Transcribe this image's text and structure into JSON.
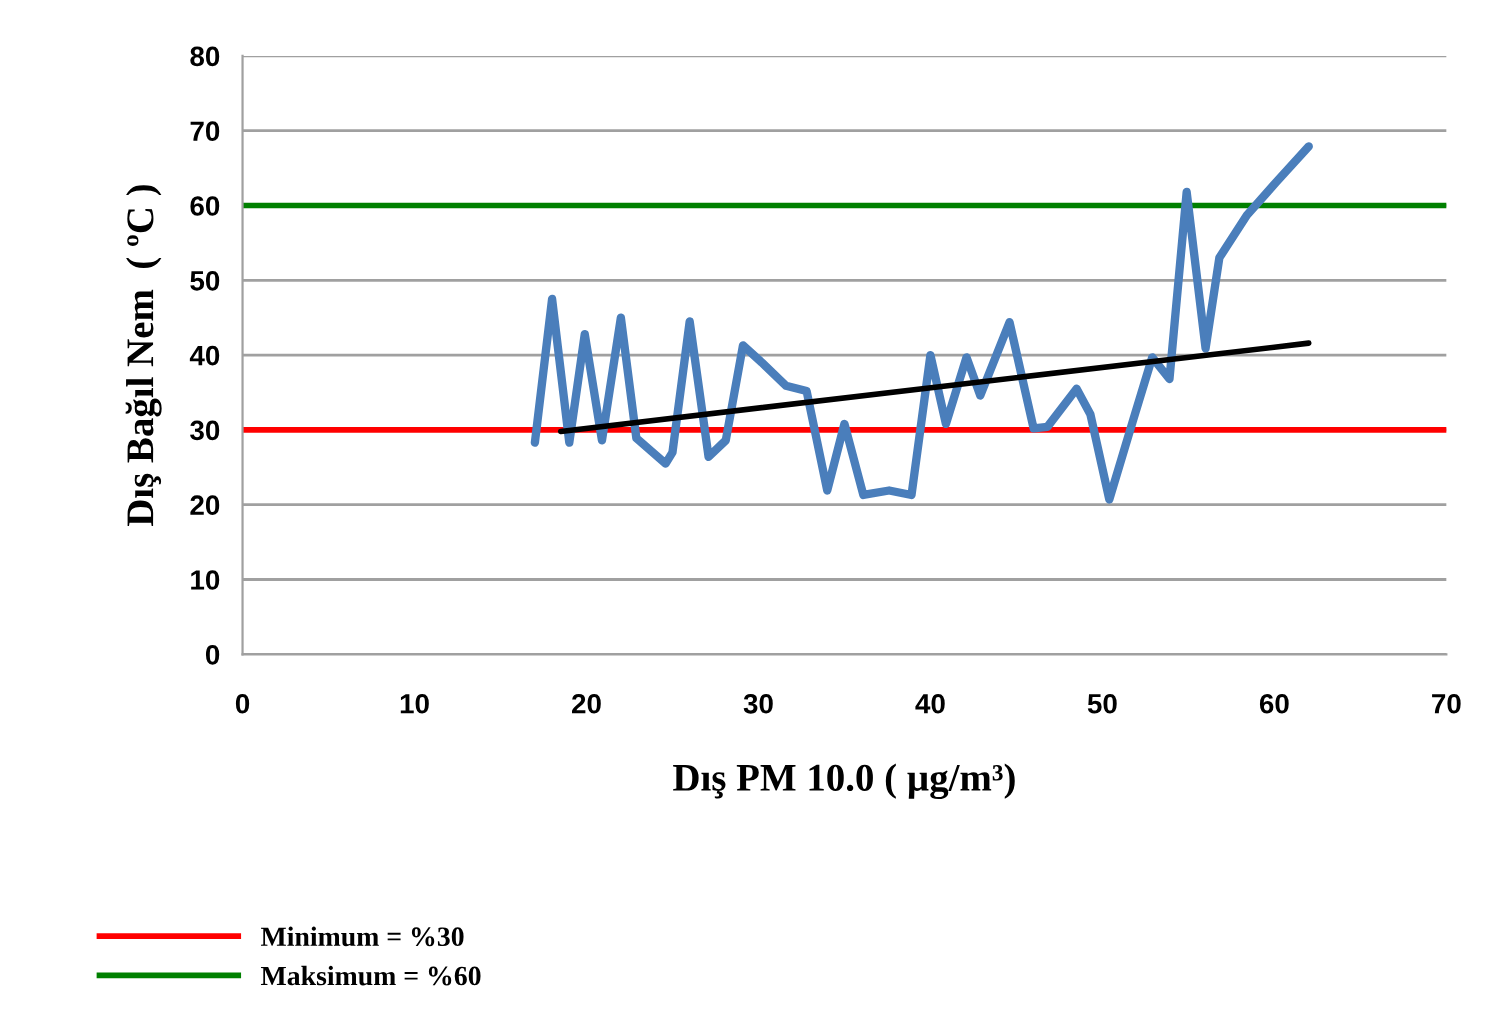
{
  "chart_data": {
    "type": "line",
    "xlabel": "Dış PM 10.0 ( µg/m³)",
    "ylabel": "Dış Bağıl Nem  ( ºC )",
    "xlim": [
      0,
      70
    ],
    "xticks": [
      0,
      10,
      20,
      30,
      40,
      50,
      60,
      70
    ],
    "ylim": [
      0,
      80
    ],
    "yticks": [
      0,
      10,
      20,
      30,
      40,
      50,
      60,
      70,
      80
    ],
    "grid": "y",
    "legend": "bottom left",
    "marker": "none",
    "line_style": "solid",
    "series": [
      {
        "color": "#4a7ebb",
        "x": [
          17,
          18,
          19,
          19.9,
          20.9,
          22,
          22.9,
          24.6,
          25,
          26,
          27.1,
          28.1,
          29.1,
          30.2,
          31.6,
          32.8,
          34,
          35,
          36.1,
          37.6,
          38.9,
          40,
          40.9,
          42.1,
          42.9,
          44.6,
          46,
          46.8,
          48.5,
          49.3,
          50.4,
          51.8,
          52.9,
          53.9,
          54.9,
          56,
          56.8,
          58.4,
          60.1,
          62
        ],
        "values": [
          28.3,
          47.5,
          28.3,
          42.8,
          28.6,
          45,
          28.9,
          25.5,
          27,
          44.5,
          26.4,
          28.6,
          41.3,
          39,
          35.9,
          35.2,
          21.9,
          30.8,
          21.3,
          21.9,
          21.3,
          40,
          30.8,
          39.7,
          34.6,
          44.4,
          30.2,
          30.4,
          35.5,
          32.1,
          20.7,
          31.4,
          39.7,
          36.8,
          61.8,
          40.9,
          53,
          58.7,
          63.1,
          67.9
        ]
      },
      {
        "color": "#000000",
        "x": [
          18.5,
          62
        ],
        "values": [
          29.8,
          41.6
        ]
      }
    ],
    "ref_lines": [
      {
        "axis": "y",
        "value": 30,
        "label": "Minimum = %30",
        "color": "#ff0000"
      },
      {
        "axis": "y",
        "value": 60,
        "label": "Maksimum = %60",
        "color": "#008000"
      }
    ]
  }
}
